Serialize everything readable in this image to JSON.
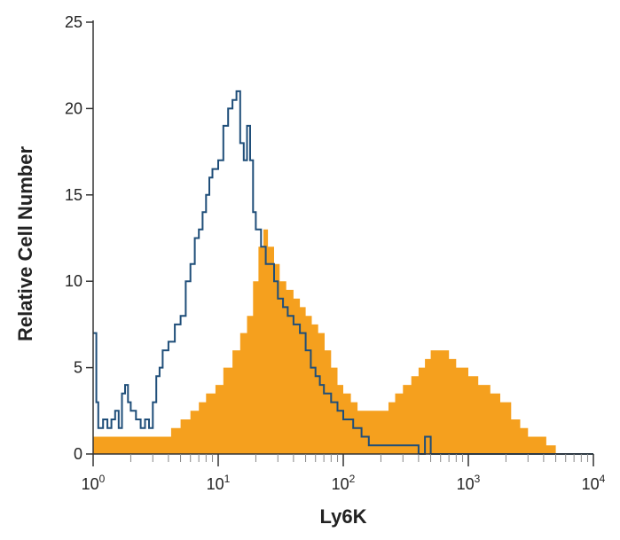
{
  "chart_data": {
    "type": "area",
    "title": "",
    "xlabel": "Ly6K",
    "ylabel": "Relative Cell Number",
    "xscale": "log",
    "xlim": [
      1,
      10000
    ],
    "ylim": [
      0,
      25
    ],
    "grid": false,
    "legend": "none",
    "x_ticks": [
      {
        "base": "10",
        "exp": "0",
        "value": 1
      },
      {
        "base": "10",
        "exp": "1",
        "value": 10
      },
      {
        "base": "10",
        "exp": "2",
        "value": 100
      },
      {
        "base": "10",
        "exp": "3",
        "value": 1000
      },
      {
        "base": "10",
        "exp": "4",
        "value": 10000
      }
    ],
    "y_ticks": [
      "0",
      "5",
      "10",
      "15",
      "20",
      "25"
    ],
    "series": [
      {
        "style": "filled",
        "color": "#f5a01e",
        "points": [
          [
            1.0,
            1
          ],
          [
            1.3,
            1
          ],
          [
            1.6,
            1
          ],
          [
            2.0,
            1
          ],
          [
            2.5,
            1
          ],
          [
            3.0,
            1
          ],
          [
            3.6,
            1
          ],
          [
            4.2,
            1.5
          ],
          [
            5.0,
            2
          ],
          [
            6.0,
            2.5
          ],
          [
            7.0,
            3
          ],
          [
            8.0,
            3.5
          ],
          [
            9.5,
            4
          ],
          [
            11,
            5
          ],
          [
            13,
            6
          ],
          [
            15,
            7
          ],
          [
            17,
            8
          ],
          [
            19,
            10
          ],
          [
            21,
            12
          ],
          [
            23,
            13
          ],
          [
            25,
            12
          ],
          [
            28,
            11
          ],
          [
            31,
            10
          ],
          [
            35,
            9.5
          ],
          [
            40,
            9
          ],
          [
            45,
            8.5
          ],
          [
            50,
            8
          ],
          [
            56,
            7.5
          ],
          [
            63,
            7
          ],
          [
            71,
            6
          ],
          [
            80,
            5
          ],
          [
            90,
            4
          ],
          [
            100,
            3.5
          ],
          [
            115,
            3
          ],
          [
            130,
            2.5
          ],
          [
            150,
            2.5
          ],
          [
            170,
            2.5
          ],
          [
            200,
            2.5
          ],
          [
            230,
            3
          ],
          [
            260,
            3.5
          ],
          [
            300,
            4
          ],
          [
            350,
            4.5
          ],
          [
            400,
            5
          ],
          [
            450,
            5.5
          ],
          [
            500,
            6
          ],
          [
            600,
            6
          ],
          [
            700,
            5.5
          ],
          [
            800,
            5
          ],
          [
            1000,
            4.5
          ],
          [
            1200,
            4
          ],
          [
            1500,
            3.5
          ],
          [
            1800,
            3
          ],
          [
            2200,
            2
          ],
          [
            2600,
            1.5
          ],
          [
            3000,
            1
          ],
          [
            3600,
            1
          ],
          [
            4200,
            0.5
          ],
          [
            5000,
            0
          ],
          [
            10000,
            0
          ]
        ]
      },
      {
        "style": "outline",
        "color": "#1f4e79",
        "points": [
          [
            1.0,
            7
          ],
          [
            1.06,
            3
          ],
          [
            1.1,
            1.5
          ],
          [
            1.2,
            2
          ],
          [
            1.3,
            1.5
          ],
          [
            1.4,
            2
          ],
          [
            1.5,
            2.5
          ],
          [
            1.6,
            1.5
          ],
          [
            1.7,
            3.5
          ],
          [
            1.8,
            4
          ],
          [
            1.9,
            3
          ],
          [
            2.0,
            2.5
          ],
          [
            2.2,
            2
          ],
          [
            2.4,
            1.5
          ],
          [
            2.6,
            2
          ],
          [
            2.8,
            1.5
          ],
          [
            3.0,
            3
          ],
          [
            3.2,
            4.5
          ],
          [
            3.4,
            5
          ],
          [
            3.6,
            6
          ],
          [
            4.0,
            6.5
          ],
          [
            4.5,
            7.5
          ],
          [
            5.0,
            8
          ],
          [
            5.5,
            10
          ],
          [
            6.0,
            11
          ],
          [
            6.5,
            12.5
          ],
          [
            7.0,
            13
          ],
          [
            7.5,
            14
          ],
          [
            8.0,
            15
          ],
          [
            8.5,
            16
          ],
          [
            9.0,
            16.5
          ],
          [
            10,
            17
          ],
          [
            11,
            19
          ],
          [
            12,
            20
          ],
          [
            13,
            20.5
          ],
          [
            14,
            21
          ],
          [
            15,
            18
          ],
          [
            16,
            17
          ],
          [
            17,
            19
          ],
          [
            18,
            17
          ],
          [
            19,
            14
          ],
          [
            20,
            13
          ],
          [
            22,
            12
          ],
          [
            24,
            11
          ],
          [
            26,
            11
          ],
          [
            28,
            10
          ],
          [
            30,
            9
          ],
          [
            33,
            8.5
          ],
          [
            36,
            8
          ],
          [
            40,
            7.5
          ],
          [
            45,
            7
          ],
          [
            50,
            6
          ],
          [
            55,
            5
          ],
          [
            60,
            4.5
          ],
          [
            65,
            4
          ],
          [
            70,
            3.5
          ],
          [
            80,
            3
          ],
          [
            90,
            2.5
          ],
          [
            100,
            2
          ],
          [
            120,
            1.5
          ],
          [
            140,
            1
          ],
          [
            160,
            0.5
          ],
          [
            200,
            0.5
          ],
          [
            300,
            0.5
          ],
          [
            400,
            0
          ],
          [
            450,
            1
          ],
          [
            500,
            0
          ],
          [
            10000,
            0
          ]
        ]
      }
    ]
  }
}
